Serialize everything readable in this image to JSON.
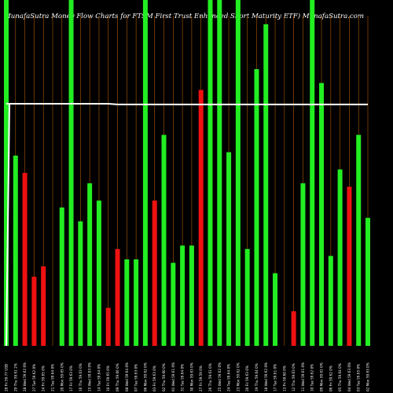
{
  "chart_data": {
    "type": "bar",
    "title": "MunafaSutra  Money Flow  Charts for FTSM                              First Trust Enhanced Short Maturity ETF) MunafaSutra.com",
    "colors": {
      "up": "#22ee22",
      "down": "#ee1111",
      "line": "#ffffff",
      "grid": "#b05a00",
      "background": "#000000"
    },
    "ylim": [
      0,
      100
    ],
    "categories": [
      "28 Fri 59.77 USD",
      "29 Thu 59.61 2%",
      "28 Wed 59.62 0%",
      "27 Tue 59.62 0%",
      "24 Fri 59.65 0%",
      "21 Tue 59.64 0%",
      "20 Mon 59.65 0%",
      "17 Fri 59.63 0%",
      "16 Thu 59.63 0%",
      "15 Wed 59.63 0%",
      "14 Tue 59.64 0%",
      "10 Fri 59.65 0%",
      "09 Thu 59.66 0%",
      "08 Wed 59.64 0%",
      "07 Tue 59.63 0%",
      "06 Mon 59.62 0%",
      "03 Fri 59.63 0%",
      "02 Thu 59.60 0%",
      "01 Wed 59.61 0%",
      "31 Tue 59.64 0%",
      "30 Mon 59.63 0%",
      "27 Fri 59.59 0%",
      "26 Thu 59.61 0%",
      "25 Wed 59.62 0%",
      "24 Tue 59.64 0%",
      "23 Mon 59.62 0%",
      "20 Fri 59.63 0%",
      "19 Thu 59.64 0%",
      "18 Wed 59.62 0%",
      "17 Tue 59.61 0%",
      "13 Fri 59.60 0%",
      "12 Thu 59.63 0%",
      "11 Wed 59.61 0%",
      "10 Tue 59.62 0%",
      "09 Mon 59.61 0%",
      "06 Fri 59.62 0%",
      "05 Thu 59.64 0%",
      "04 Wed 59.63 0%",
      "03 Tue 59.65 0%",
      "02 Mon 59.63 0%"
    ],
    "values": [
      100,
      55,
      50,
      20,
      23,
      0,
      40,
      100,
      36,
      47,
      42,
      11,
      28,
      25,
      25,
      100,
      42,
      61,
      24,
      29,
      29,
      74,
      100,
      100,
      56,
      100,
      28,
      80,
      93,
      21,
      0,
      10,
      47,
      100,
      76,
      26,
      51,
      46,
      61,
      37
    ],
    "directions": [
      "up",
      "up",
      "down",
      "down",
      "down",
      "up",
      "up",
      "up",
      "up",
      "up",
      "up",
      "down",
      "down",
      "up",
      "up",
      "up",
      "down",
      "up",
      "up",
      "up",
      "up",
      "down",
      "up",
      "up",
      "up",
      "up",
      "up",
      "up",
      "up",
      "up",
      "up",
      "down",
      "up",
      "up",
      "up",
      "up",
      "up",
      "down",
      "up",
      "up"
    ],
    "line_values": [
      70,
      70,
      70,
      70,
      70,
      70,
      70,
      70,
      70,
      70,
      70,
      70,
      69.8,
      69.8,
      69.8,
      69.8,
      69.8,
      69.8,
      69.8,
      69.8,
      69.8,
      69.8,
      69.8,
      69.8,
      69.8,
      69.8,
      69.8,
      69.8,
      69.8,
      69.8,
      69.8,
      69.8,
      69.8,
      69.8,
      69.8,
      69.8,
      69.8,
      69.8,
      69.8,
      69.8
    ]
  }
}
